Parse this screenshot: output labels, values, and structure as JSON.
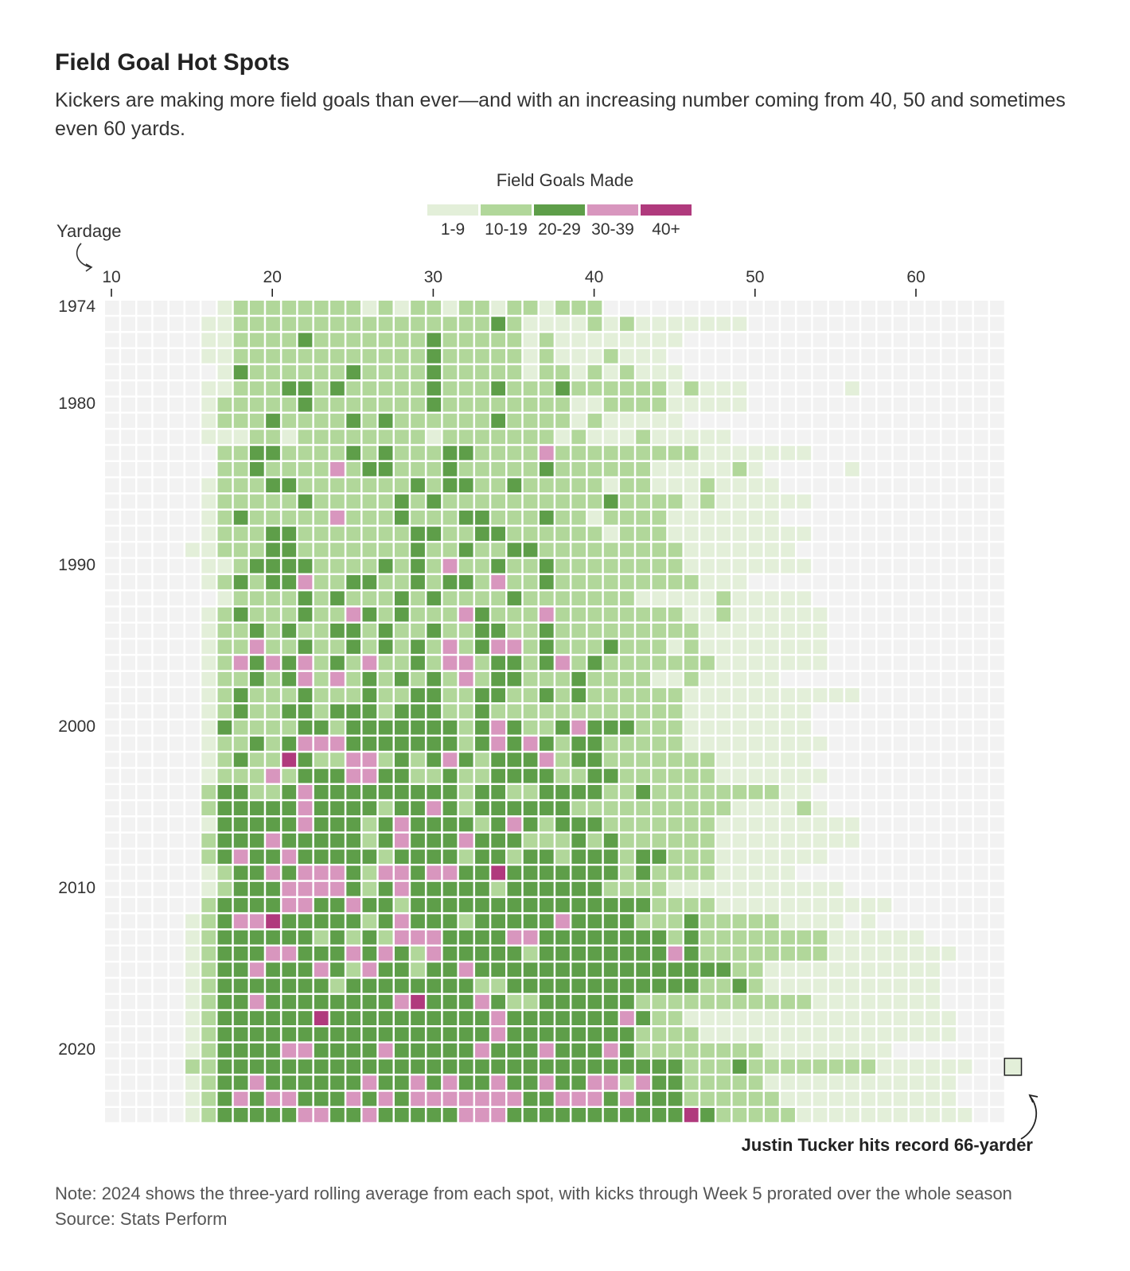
{
  "header": {
    "title": "Field Goal Hot Spots",
    "subtitle": "Kickers are making more field goals than ever—and with an increasing number coming from 40, 50 and sometimes even 60 yards."
  },
  "legend": {
    "title": "Field Goals Made",
    "items": [
      {
        "label": "1-9",
        "color": "#e3efd9"
      },
      {
        "label": "10-19",
        "color": "#b1d79a"
      },
      {
        "label": "20-29",
        "color": "#5e9e49"
      },
      {
        "label": "30-39",
        "color": "#d896be"
      },
      {
        "label": "40+",
        "color": "#b03a7d"
      }
    ]
  },
  "footer": {
    "note": "Note: 2024 shows the three-yard rolling average from each spot, with kicks through Week 5 prorated over the whole season",
    "source": "Source: Stats Perform"
  },
  "chart_data": {
    "type": "heatmap",
    "x_axis_label": "Yardage",
    "x_ticks": [
      10,
      20,
      30,
      40,
      50,
      60
    ],
    "y_ticks": [
      1974,
      1980,
      1990,
      2000,
      2010,
      2020
    ],
    "x_range": [
      10,
      66
    ],
    "y_range": [
      1974,
      2024
    ],
    "value_bins": [
      "",
      "1-9",
      "10-19",
      "20-29",
      "30-39",
      "40+"
    ],
    "colors": {
      "0": "#f2f2f2",
      "1": "#e3efd9",
      "2": "#b1d79a",
      "3": "#5e9e49",
      "4": "#d896be",
      "5": "#b03a7d"
    },
    "annotation": {
      "text": "Justin Tucker hits record 66-yarder",
      "year": 2021,
      "yard": 66
    },
    "years": [
      1974,
      1975,
      1976,
      1977,
      1978,
      1979,
      1980,
      1981,
      1982,
      1983,
      1984,
      1985,
      1986,
      1987,
      1988,
      1989,
      1990,
      1991,
      1992,
      1993,
      1994,
      1995,
      1996,
      1997,
      1998,
      1999,
      2000,
      2001,
      2002,
      2003,
      2004,
      2005,
      2006,
      2007,
      2008,
      2009,
      2010,
      2011,
      2012,
      2013,
      2014,
      2015,
      2016,
      2017,
      2018,
      2019,
      2020,
      2021,
      2022,
      2023,
      2024
    ],
    "rows": [
      "00000001222222221212212212212220000000000000000000000000",
      "00000011222222222222222232111121211111110000000000000000",
      "00000011222232222222322222121111111100000000000000000000",
      "00000011222222222222322222121112111000000000000000000000",
      "00000001322222232222322222122121211100000000000000000000",
      "00000011222332322222322232223222222121110000001000000000",
      "00000012222232222222322222222112222111110000000000000000",
      "00000012223222232322222232222121111100000000000000000000",
      "00000011122122222222122222221211121111100000000000000000",
      "00000002233222232322233222242222222221111111000000000000",
      "00000002232222423322232222232222221111121000001000000000",
      "00000012223322222223233223222221221112111100000000000000",
      "00000012222232222232322222222223222212111111000000000000",
      "00000012322222422232223322232212222111111100000000000000",
      "00000012223322222223322332222221222111111111000000000000",
      "00000112223322222223223223322222222211111110000000000000",
      "00000011233332222323242232232222222211111111000000000000",
      "00000012323342233223233242232222222221110000000000000000",
      "00000001222232322232322223222222211111211111000000000000",
      "00000012322232243232224322242222222211211111100000000000",
      "00000012232322332322322332232222222221111111100000000000",
      "00000012242232232323242344232223222121111111100000000000",
      "00000012434342324223244233234232222222111111100000000000",
      "00000012232342423232324233222322221121111100000000000000",
      "00000012322232223223322332232322222211111111111000000000",
      "00000012322332333233322322222222222211111111000000000000",
      "00000013222233233333332343223433322211111111000000000000",
      "00000012232344433333332343432332222211111111100000000000",
      "00000012322532244232343233342332222222111111000000000000",
      "00000012224233344332232233332233222222111111100000000000",
      "00000023322343333333332332233332232222222211000000000000",
      "00000023333343333233432333333222222222211112100000000000",
      "00000013333343332343333234323332222222111111111000000000",
      "00000023334333332343334333222323222222111111111000000000",
      "00000023433433333233332332332333233222111111100000000000",
      "00000012334344432443443353333333232222111110000000000000",
      "00000012333444432343333323333332222111111111110000000000",
      "00000023333443343323333333333333332222111111111110000000",
      "00000123445333332343332333334333322232222211110100000000",
      "00000123333332323244433334433333333232222222211111100000",
      "00000123334433343432433333233333333432222222211111111000",
      "00000123343334324332334333333333333333322111111111110000",
      "00000123333333233333333223333333333332232111111111110000",
      "00000123343333333345333432233333322222222222111111110000",
      "00000123333335333333333343333333432211111111111111111000",
      "00000123333333333333333343333333322221111111111111111000",
      "00000123333443333433333433343334322222222111111110000000",
      "00000223333333333333333333333333333322232222222211111100",
      "00000123343333334334343343343344243322222111111111111000",
      "00000123434433343434444444334443433322222211111111111000",
      "00000123333344334333334443333333333353222221111111111100"
    ]
  }
}
